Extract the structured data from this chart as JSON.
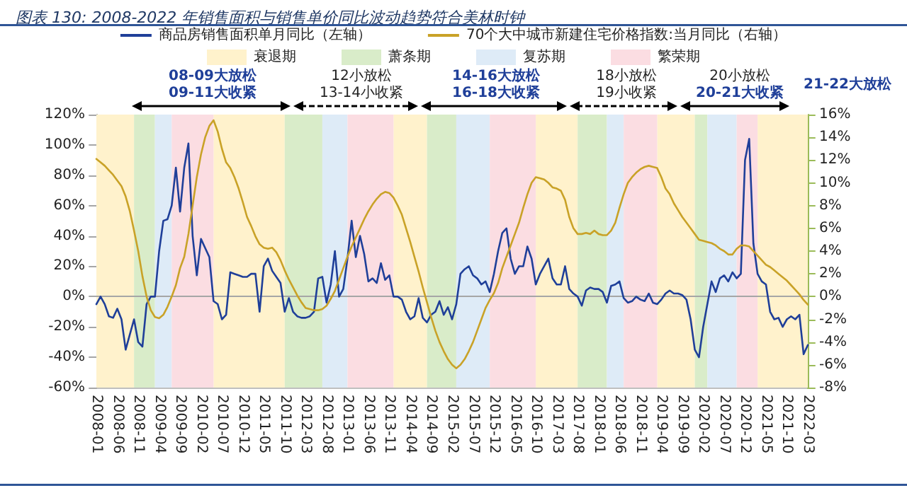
{
  "chart_data": {
    "type": "line",
    "title": "图表 130: 2008-2022 年销售面积与销售单价同比波动趋势符合美林时钟",
    "x": [
      "2008-01",
      "2008-02",
      "2008-03",
      "2008-04",
      "2008-05",
      "2008-06",
      "2008-07",
      "2008-08",
      "2008-09",
      "2008-10",
      "2008-11",
      "2008-12",
      "2009-01",
      "2009-02",
      "2009-03",
      "2009-04",
      "2009-05",
      "2009-06",
      "2009-07",
      "2009-08",
      "2009-09",
      "2009-10",
      "2009-11",
      "2009-12",
      "2010-01",
      "2010-02",
      "2010-03",
      "2010-04",
      "2010-05",
      "2010-06",
      "2010-07",
      "2010-08",
      "2010-09",
      "2010-10",
      "2010-11",
      "2010-12",
      "2011-01",
      "2011-02",
      "2011-03",
      "2011-04",
      "2011-05",
      "2011-06",
      "2011-07",
      "2011-08",
      "2011-09",
      "2011-10",
      "2011-11",
      "2011-12",
      "2012-01",
      "2012-02",
      "2012-03",
      "2012-04",
      "2012-05",
      "2012-06",
      "2012-07",
      "2012-08",
      "2012-09",
      "2012-10",
      "2012-11",
      "2012-12",
      "2013-01",
      "2013-02",
      "2013-03",
      "2013-04",
      "2013-05",
      "2013-06",
      "2013-07",
      "2013-08",
      "2013-09",
      "2013-10",
      "2013-11",
      "2013-12",
      "2014-01",
      "2014-02",
      "2014-03",
      "2014-04",
      "2014-05",
      "2014-06",
      "2014-07",
      "2014-08",
      "2014-09",
      "2014-10",
      "2014-11",
      "2014-12",
      "2015-01",
      "2015-02",
      "2015-03",
      "2015-04",
      "2015-05",
      "2015-06",
      "2015-07",
      "2015-08",
      "2015-09",
      "2015-10",
      "2015-11",
      "2015-12",
      "2016-01",
      "2016-02",
      "2016-03",
      "2016-04",
      "2016-05",
      "2016-06",
      "2016-07",
      "2016-08",
      "2016-09",
      "2016-10",
      "2016-11",
      "2016-12",
      "2017-01",
      "2017-02",
      "2017-03",
      "2017-04",
      "2017-05",
      "2017-06",
      "2017-07",
      "2017-08",
      "2017-09",
      "2017-10",
      "2017-11",
      "2017-12",
      "2018-01",
      "2018-02",
      "2018-03",
      "2018-04",
      "2018-05",
      "2018-06",
      "2018-07",
      "2018-08",
      "2018-09",
      "2018-10",
      "2018-11",
      "2018-12",
      "2019-01",
      "2019-02",
      "2019-03",
      "2019-04",
      "2019-05",
      "2019-06",
      "2019-07",
      "2019-08",
      "2019-09",
      "2019-10",
      "2019-11",
      "2019-12",
      "2020-01",
      "2020-02",
      "2020-03",
      "2020-04",
      "2020-05",
      "2020-06",
      "2020-07",
      "2020-08",
      "2020-09",
      "2020-10",
      "2020-11",
      "2020-12",
      "2021-01",
      "2021-02",
      "2021-03",
      "2021-04",
      "2021-05",
      "2021-06",
      "2021-07",
      "2021-08",
      "2021-09",
      "2021-10",
      "2021-11",
      "2021-12",
      "2022-01",
      "2022-02",
      "2022-03"
    ],
    "series": [
      {
        "name": "商品房销售面积单月同比（左轴）",
        "color": "#1f3f99",
        "values": [
          -5,
          0,
          -5,
          -13,
          -14,
          -8,
          -15,
          -35,
          -25,
          -15,
          -30,
          -33,
          -5,
          0,
          0,
          30,
          50,
          51,
          60,
          85,
          56,
          85,
          101,
          40,
          14,
          38,
          32,
          26,
          -3,
          -5,
          -15,
          -12,
          16,
          15,
          14,
          13,
          13,
          15,
          15,
          -10,
          20,
          25,
          17,
          13,
          9,
          -10,
          -1,
          -10,
          -13,
          -14,
          -14,
          -13,
          -10,
          12,
          13,
          -4,
          8,
          30,
          0,
          5,
          25,
          50,
          26,
          40,
          28,
          10,
          12,
          9,
          22,
          11,
          14,
          0,
          0,
          -2,
          -10,
          -15,
          -13,
          -1,
          -14,
          -17,
          -12,
          -10,
          -3,
          -12,
          -7,
          -15,
          -5,
          15,
          18,
          20,
          14,
          12,
          8,
          10,
          3,
          15,
          30,
          42,
          45,
          25,
          15,
          20,
          20,
          33,
          25,
          8,
          15,
          20,
          25,
          12,
          8,
          8,
          20,
          5,
          2,
          0,
          -6,
          4,
          6,
          5,
          5,
          3,
          -4,
          7,
          8,
          10,
          -1,
          -4,
          -3,
          0,
          -2,
          -3,
          2,
          -4,
          -5,
          -2,
          2,
          4,
          2,
          2,
          1,
          -2,
          -15,
          -35,
          -40,
          -20,
          -5,
          10,
          3,
          12,
          14,
          10,
          16,
          12,
          15,
          90,
          104,
          35,
          15,
          10,
          8,
          -10,
          -15,
          -14,
          -20,
          -15,
          -13,
          -15,
          -12,
          -38,
          -32
        ]
      },
      {
        "name": "70个大中城市新建住宅价格指数:当月同比（右轴）",
        "color": "#c9a227",
        "axis": "y2",
        "values": [
          12.1,
          11.8,
          11.5,
          11.1,
          10.7,
          10.2,
          9.7,
          8.8,
          7.5,
          5.8,
          4.0,
          1.8,
          0,
          -1.2,
          -1.8,
          -1.9,
          -1.6,
          -0.9,
          0,
          1.0,
          2.5,
          3.5,
          5.5,
          8.0,
          10.5,
          12.5,
          14.0,
          15.0,
          15.5,
          14.5,
          13.0,
          11.8,
          11.3,
          10.5,
          9.5,
          8.3,
          7.0,
          6.2,
          5.3,
          4.6,
          4.3,
          4.2,
          4.3,
          3.9,
          3.2,
          2.3,
          1.5,
          0.8,
          0.1,
          -0.5,
          -1.0,
          -1.1,
          -1.2,
          -1.2,
          -1.1,
          -0.8,
          -0.2,
          0.5,
          1.5,
          2.5,
          3.5,
          4.4,
          5.2,
          6.0,
          6.8,
          7.5,
          8.1,
          8.6,
          9.0,
          9.2,
          9.1,
          8.7,
          8.0,
          7.2,
          6.0,
          4.8,
          3.5,
          2.2,
          0.8,
          -0.5,
          -1.8,
          -3.0,
          -4.0,
          -4.8,
          -5.5,
          -6.0,
          -6.3,
          -6.0,
          -5.5,
          -4.8,
          -4.0,
          -3.0,
          -2.0,
          -1.0,
          -0.3,
          0.3,
          1.2,
          2.5,
          3.5,
          4.5,
          5.5,
          6.5,
          7.8,
          9.0,
          10.0,
          10.5,
          10.4,
          10.3,
          10.0,
          9.6,
          9.5,
          9.3,
          8.5,
          7.0,
          6.0,
          5.5,
          5.5,
          5.6,
          5.5,
          5.8,
          5.5,
          5.4,
          5.4,
          5.8,
          6.5,
          7.8,
          9.0,
          10.0,
          10.5,
          10.9,
          11.2,
          11.4,
          11.5,
          11.4,
          11.3,
          10.5,
          9.5,
          9.0,
          8.2,
          7.6,
          7.0,
          6.5,
          6.0,
          5.5,
          5.0,
          4.9,
          4.8,
          4.7,
          4.5,
          4.2,
          4.0,
          3.7,
          3.7,
          4.2,
          4.5,
          4.5,
          4.4,
          4.0,
          3.6,
          3.2,
          2.8,
          2.6,
          2.3,
          2.0,
          1.7,
          1.4,
          1.0,
          0.6,
          0.2,
          -0.3,
          -0.7
        ]
      }
    ],
    "xlim": [
      "2008-01",
      "2022-03"
    ],
    "xticks": [
      "2008-01",
      "2008-06",
      "2008-11",
      "2009-04",
      "2009-09",
      "2010-02",
      "2010-07",
      "2010-12",
      "2011-05",
      "2011-10",
      "2012-03",
      "2012-08",
      "2013-01",
      "2013-06",
      "2013-11",
      "2014-04",
      "2014-09",
      "2015-02",
      "2015-07",
      "2015-12",
      "2016-05",
      "2016-10",
      "2017-03",
      "2017-08",
      "2018-01",
      "2018-06",
      "2018-11",
      "2019-04",
      "2019-09",
      "2020-02",
      "2020-07",
      "2020-12",
      "2021-05",
      "2021-10",
      "2022-03"
    ],
    "ylim": [
      -60,
      120
    ],
    "yticks": [
      {
        "value": -60,
        "label": "-60%"
      },
      {
        "value": -40,
        "label": "-40%"
      },
      {
        "value": -20,
        "label": "-20%"
      },
      {
        "value": 0,
        "label": "0%"
      },
      {
        "value": 20,
        "label": "20%"
      },
      {
        "value": 40,
        "label": "40%"
      },
      {
        "value": 60,
        "label": "60%"
      },
      {
        "value": 80,
        "label": "80%"
      },
      {
        "value": 100,
        "label": "100%"
      },
      {
        "value": 120,
        "label": "120%"
      }
    ],
    "y2lim": [
      -8,
      16
    ],
    "y2ticks": [
      {
        "value": -8,
        "label": "-8%"
      },
      {
        "value": -6,
        "label": "-6%"
      },
      {
        "value": -4,
        "label": "-4%"
      },
      {
        "value": -2,
        "label": "-2%"
      },
      {
        "value": 0,
        "label": "0%"
      },
      {
        "value": 2,
        "label": "2%"
      },
      {
        "value": 4,
        "label": "4%"
      },
      {
        "value": 6,
        "label": "6%"
      },
      {
        "value": 8,
        "label": "8%"
      },
      {
        "value": 10,
        "label": "10%"
      },
      {
        "value": 12,
        "label": "12%"
      },
      {
        "value": 14,
        "label": "14%"
      },
      {
        "value": 16,
        "label": "16%"
      }
    ],
    "bands": [
      {
        "axis": "x",
        "from": "2008-01",
        "to": "2008-10",
        "label": "衰退期",
        "color": "#fff2cc"
      },
      {
        "axis": "x",
        "from": "2008-10",
        "to": "2009-03",
        "label": "萧条期",
        "color": "#d9ecc9"
      },
      {
        "axis": "x",
        "from": "2009-03",
        "to": "2009-07",
        "label": "复苏期",
        "color": "#deebf7"
      },
      {
        "axis": "x",
        "from": "2009-07",
        "to": "2010-05",
        "label": "繁荣期",
        "color": "#fbdde2"
      },
      {
        "axis": "x",
        "from": "2010-05",
        "to": "2011-10",
        "color": "#fff2cc"
      },
      {
        "axis": "x",
        "from": "2011-10",
        "to": "2012-07",
        "color": "#d9ecc9"
      },
      {
        "axis": "x",
        "from": "2012-07",
        "to": "2013-01",
        "color": "#deebf7"
      },
      {
        "axis": "x",
        "from": "2013-01",
        "to": "2013-12",
        "color": "#fbdde2"
      },
      {
        "axis": "x",
        "from": "2013-12",
        "to": "2014-08",
        "color": "#fff2cc"
      },
      {
        "axis": "x",
        "from": "2014-08",
        "to": "2015-03",
        "color": "#d9ecc9"
      },
      {
        "axis": "x",
        "from": "2015-03",
        "to": "2015-11",
        "color": "#deebf7"
      },
      {
        "axis": "x",
        "from": "2015-11",
        "to": "2016-10",
        "color": "#fbdde2"
      },
      {
        "axis": "x",
        "from": "2016-10",
        "to": "2017-08",
        "color": "#fff2cc"
      },
      {
        "axis": "x",
        "from": "2017-08",
        "to": "2018-03",
        "color": "#d9ecc9"
      },
      {
        "axis": "x",
        "from": "2018-03",
        "to": "2018-07",
        "color": "#deebf7"
      },
      {
        "axis": "x",
        "from": "2018-07",
        "to": "2019-03",
        "color": "#fbdde2"
      },
      {
        "axis": "x",
        "from": "2019-03",
        "to": "2019-12",
        "color": "#fff2cc"
      },
      {
        "axis": "x",
        "from": "2019-12",
        "to": "2020-03",
        "color": "#d9ecc9"
      },
      {
        "axis": "x",
        "from": "2020-03",
        "to": "2020-10",
        "color": "#deebf7"
      },
      {
        "axis": "x",
        "from": "2020-10",
        "to": "2021-03",
        "color": "#fbdde2"
      },
      {
        "axis": "x",
        "from": "2021-03",
        "to": "2022-03",
        "color": "#fff2cc"
      }
    ],
    "ref_lines": [
      {
        "axis": "y",
        "value": 0,
        "color": "#a6a6a6"
      }
    ],
    "annotations": [
      "08-09大放松",
      "09-11大收紧",
      "12小放松",
      "13-14小收紧",
      "14-16大放松",
      "16-18大收紧",
      "18小放松",
      "19小收紧",
      "20小放松",
      "20-21大收紧",
      "21-22大放松"
    ],
    "legend": "top",
    "marker": "none",
    "line_style": "solid"
  }
}
